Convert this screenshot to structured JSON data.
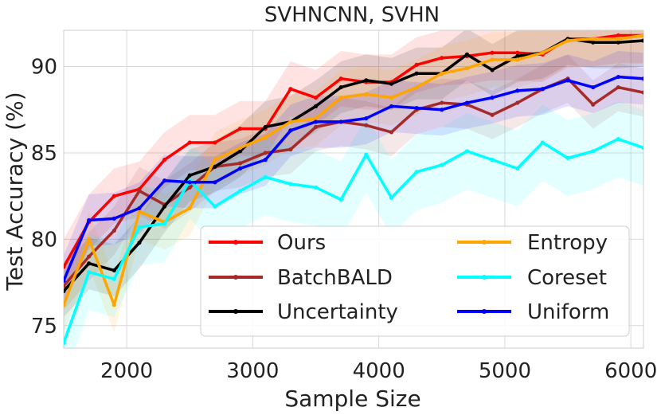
{
  "chart_data": {
    "type": "line",
    "title": "SVHNCNN, SVHN",
    "xlabel": "Sample Size",
    "ylabel": "Test Accuracy (%)",
    "xlim": [
      1500,
      6100
    ],
    "ylim": [
      73.7,
      92.1
    ],
    "xticks": [
      2000,
      3000,
      4000,
      5000,
      6000
    ],
    "yticks": [
      75,
      80,
      85,
      90
    ],
    "grid": true,
    "legend_position": "lower-right",
    "x": [
      1500,
      1700,
      1900,
      2100,
      2300,
      2500,
      2700,
      2900,
      3100,
      3300,
      3500,
      3700,
      3900,
      4100,
      4300,
      4500,
      4700,
      4900,
      5100,
      5300,
      5500,
      5700,
      5900,
      6100
    ],
    "series": [
      {
        "name": "Ours",
        "color": "#ff0000",
        "band": 1.6,
        "values": [
          78.4,
          81.0,
          82.5,
          82.9,
          84.6,
          85.6,
          85.6,
          86.4,
          86.4,
          88.7,
          88.2,
          89.3,
          89.1,
          89.1,
          90.1,
          90.5,
          90.6,
          90.8,
          90.8,
          90.7,
          91.6,
          91.6,
          91.8,
          91.8
        ]
      },
      {
        "name": "BatchBALD",
        "color": "#a52a2a",
        "band": 1.4,
        "values": [
          77.3,
          79.0,
          80.5,
          82.8,
          82.0,
          83.0,
          84.2,
          84.4,
          85.0,
          85.2,
          86.5,
          86.8,
          86.6,
          86.2,
          87.5,
          87.9,
          87.8,
          87.2,
          87.9,
          88.7,
          89.3,
          87.8,
          88.8,
          88.5
        ]
      },
      {
        "name": "Uncertainty",
        "color": "#000000",
        "band": 1.5,
        "values": [
          77.0,
          78.6,
          78.2,
          79.8,
          81.9,
          83.7,
          84.2,
          85.1,
          86.5,
          86.8,
          87.7,
          88.8,
          89.2,
          89.0,
          89.6,
          89.6,
          90.7,
          89.8,
          90.6,
          90.8,
          91.6,
          91.4,
          91.4,
          91.5
        ]
      },
      {
        "name": "Entropy",
        "color": "#ffa500",
        "band": 1.6,
        "values": [
          76.2,
          80.0,
          76.2,
          81.6,
          81.0,
          81.8,
          84.6,
          85.3,
          85.9,
          86.8,
          87.0,
          88.2,
          88.4,
          88.2,
          88.8,
          89.6,
          89.9,
          90.4,
          90.4,
          90.8,
          91.5,
          91.6,
          91.6,
          91.8
        ]
      },
      {
        "name": "Coreset",
        "color": "#00ffff",
        "band": 2.2,
        "values": [
          74.0,
          78.1,
          77.7,
          80.7,
          80.9,
          83.4,
          81.9,
          82.8,
          83.6,
          83.2,
          83.0,
          82.3,
          84.9,
          82.4,
          83.9,
          84.3,
          85.1,
          84.6,
          84.1,
          85.6,
          84.7,
          85.1,
          85.8,
          85.3
        ]
      },
      {
        "name": "Uniform",
        "color": "#0000ff",
        "band": 1.5,
        "values": [
          77.6,
          81.1,
          81.2,
          81.8,
          83.4,
          83.3,
          83.3,
          84.1,
          84.6,
          86.3,
          86.8,
          86.8,
          87.0,
          87.7,
          87.6,
          87.5,
          87.9,
          88.2,
          88.6,
          88.7,
          89.2,
          88.8,
          89.4,
          89.3
        ]
      }
    ]
  }
}
